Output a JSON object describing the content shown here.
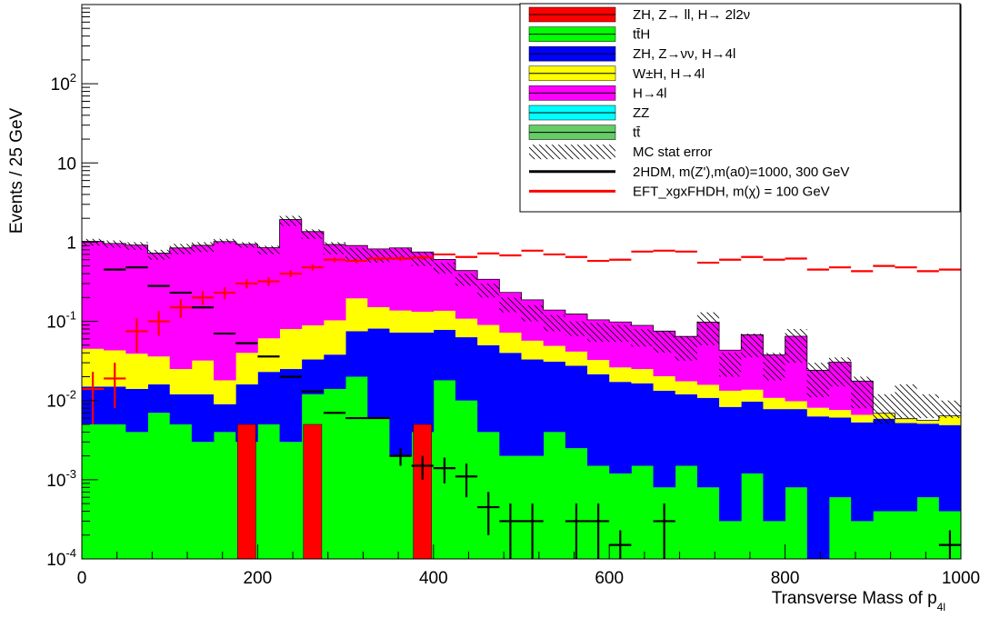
{
  "chart_data": {
    "type": "histogram",
    "xlabel": "Transverse Mass of p",
    "xlabel_sub": "4l",
    "ylabel": "Events / 25 GeV",
    "xlim": [
      0,
      1000
    ],
    "ylim": [
      0.0001,
      1000
    ],
    "y_scale": "log",
    "bin_width": 25,
    "x_ticks": [
      "0",
      "200",
      "400",
      "600",
      "800",
      "1000"
    ],
    "y_ticks": [
      {
        "value": 0.0001,
        "base": "10",
        "exp": "-4"
      },
      {
        "value": 0.001,
        "base": "10",
        "exp": "-3"
      },
      {
        "value": 0.01,
        "base": "10",
        "exp": "-2"
      },
      {
        "value": 0.1,
        "base": "10",
        "exp": "-1"
      },
      {
        "value": 1,
        "base": "1",
        "exp": ""
      },
      {
        "value": 10,
        "base": "10",
        "exp": ""
      },
      {
        "value": 100,
        "base": "10",
        "exp": "2"
      }
    ],
    "legend_position": "top-right",
    "legend": [
      {
        "label": "ZH, Z→ ll, H→ 2l2ν",
        "style": "fill",
        "color": "#ff0000"
      },
      {
        "label": "tt̄H",
        "style": "fill",
        "color": "#00ff00"
      },
      {
        "label": "ZH, Z→νν, H→4l",
        "style": "fill",
        "color": "#0000ff"
      },
      {
        "label": "W±H, H→4l",
        "style": "fill",
        "color": "#ffff00"
      },
      {
        "label": "H→4l",
        "style": "fill",
        "color": "#ff00ff"
      },
      {
        "label": "ZZ",
        "style": "fill",
        "color": "#00ffff"
      },
      {
        "label": "tt̄",
        "style": "fill",
        "color": "#66cc66"
      },
      {
        "label": "MC stat error",
        "style": "hatch",
        "color": "#000000"
      },
      {
        "label": "2HDM, m(Z'),m(a0)=1000, 300 GeV",
        "style": "line",
        "color": "#000000"
      },
      {
        "label": "EFT_xgxFHDH, m(χ) = 100 GeV",
        "style": "line",
        "color": "#ff0000"
      }
    ],
    "stack_order": [
      "ttH",
      "ZH_nunu",
      "WH",
      "H4l"
    ],
    "series": [
      {
        "name": "ZH, Z→ ll, H→ 2l2ν",
        "key": "ZH_ll",
        "color": "#ff0000",
        "values": [
          0,
          0,
          0,
          0,
          0,
          0,
          0,
          0.005,
          0,
          0,
          0.005,
          0,
          0,
          0,
          0,
          0.005,
          0,
          0,
          0,
          0,
          0,
          0,
          0,
          0,
          0,
          0,
          0,
          0,
          0,
          0,
          0,
          0,
          0,
          0,
          0,
          0,
          0,
          0,
          0,
          0
        ]
      },
      {
        "name": "tt̄H",
        "key": "ttH",
        "color": "#00ff00",
        "values": [
          0.005,
          0.005,
          0.004,
          0.007,
          0.005,
          0.003,
          0.004,
          0.003,
          0.005,
          0.003,
          0.012,
          0.014,
          0.02,
          0.006,
          0.002,
          0.004,
          0.018,
          0.01,
          0.004,
          0.002,
          0.002,
          0.004,
          0.0025,
          0.0015,
          0.0012,
          0.0015,
          0.0008,
          0.0015,
          0.0008,
          0.0003,
          0.0012,
          0.0003,
          0.0008,
          0.0001,
          0.0006,
          0.0003,
          0.0004,
          0.0004,
          0.0006,
          0.0004
        ]
      },
      {
        "name": "ZH, Z→νν, H→4l",
        "key": "ZH_nunu",
        "color": "#0000ff",
        "values": [
          0.01,
          0.01,
          0.01,
          0.009,
          0.007,
          0.009,
          0.005,
          0.013,
          0.018,
          0.022,
          0.021,
          0.024,
          0.055,
          0.075,
          0.07,
          0.068,
          0.06,
          0.053,
          0.046,
          0.038,
          0.031,
          0.027,
          0.025,
          0.02,
          0.016,
          0.015,
          0.0125,
          0.0105,
          0.01,
          0.008,
          0.0085,
          0.0075,
          0.007,
          0.0062,
          0.0055,
          0.005,
          0.0055,
          0.0048,
          0.0045,
          0.0045
        ]
      },
      {
        "name": "W±H, H→4l",
        "key": "WH",
        "color": "#ffff00",
        "values": [
          0.03,
          0.028,
          0.025,
          0.02,
          0.013,
          0.02,
          0.009,
          0.024,
          0.038,
          0.055,
          0.056,
          0.065,
          0.12,
          0.07,
          0.065,
          0.06,
          0.058,
          0.045,
          0.04,
          0.032,
          0.024,
          0.018,
          0.014,
          0.011,
          0.009,
          0.0085,
          0.007,
          0.0055,
          0.005,
          0.005,
          0.004,
          0.003,
          0.002,
          0.0018,
          0.0015,
          0.0013,
          0.001,
          0.0007,
          0.0005,
          0.0015
        ]
      },
      {
        "name": "H→4l",
        "key": "H4l",
        "color": "#ff00ff",
        "values": [
          0.98,
          0.92,
          0.88,
          0.69,
          0.82,
          0.88,
          1.0,
          0.9,
          0.79,
          1.85,
          1.27,
          0.83,
          0.71,
          0.67,
          0.71,
          0.62,
          0.47,
          0.33,
          0.25,
          0.16,
          0.13,
          0.09,
          0.082,
          0.072,
          0.072,
          0.064,
          0.055,
          0.047,
          0.082,
          0.03,
          0.054,
          0.027,
          0.055,
          0.016,
          0.023,
          0.011,
          0.0,
          0.0,
          0.0,
          0.0
        ]
      },
      {
        "name": "2HDM, m(Z'),m(a0)=1000, 300 GeV",
        "key": "sig2hdm",
        "color": "#000000",
        "type": "errorbars",
        "points": [
          [
            37.5,
            0.45,
            0
          ],
          [
            62.5,
            0.48,
            0
          ],
          [
            87.5,
            0.28,
            0
          ],
          [
            112.5,
            0.23,
            0
          ],
          [
            137.5,
            0.15,
            0
          ],
          [
            162.5,
            0.07,
            0
          ],
          [
            187.5,
            0.053,
            0
          ],
          [
            212.5,
            0.036,
            0
          ],
          [
            237.5,
            0.02,
            0
          ],
          [
            262.5,
            0.013,
            0
          ],
          [
            287.5,
            0.007,
            0
          ],
          [
            312.5,
            0.006,
            0
          ],
          [
            337.5,
            0.006,
            0
          ],
          [
            362.5,
            0.002,
            0.0005
          ],
          [
            387.5,
            0.0015,
            0.0005
          ],
          [
            412.5,
            0.0014,
            0.0005
          ],
          [
            437.5,
            0.0011,
            0.0005
          ],
          [
            462.5,
            0.00045,
            0.00025
          ],
          [
            487.5,
            0.0003,
            0.0002
          ],
          [
            512.5,
            0.0003,
            0.0002
          ],
          [
            562.5,
            0.0003,
            0.0002
          ],
          [
            587.5,
            0.0003,
            0.0002
          ],
          [
            612.5,
            0.00015,
            8e-05
          ],
          [
            662.5,
            0.0003,
            0.0002
          ],
          [
            987.5,
            0.00015,
            8e-05
          ]
        ]
      },
      {
        "name": "EFT_xgxFHDH, m(χ) = 100 GeV",
        "key": "sigEFT",
        "color": "#ff0000",
        "type": "errorbars",
        "points": [
          [
            12.5,
            0.014,
            0.009
          ],
          [
            37.5,
            0.019,
            0.011
          ],
          [
            62.5,
            0.075,
            0.035
          ],
          [
            87.5,
            0.1,
            0.035
          ],
          [
            112.5,
            0.15,
            0.04
          ],
          [
            137.5,
            0.2,
            0.04
          ],
          [
            162.5,
            0.23,
            0.04
          ],
          [
            187.5,
            0.3,
            0.04
          ],
          [
            212.5,
            0.32,
            0.04
          ],
          [
            237.5,
            0.4,
            0.04
          ],
          [
            262.5,
            0.48,
            0.04
          ],
          [
            287.5,
            0.6,
            0.04
          ],
          [
            312.5,
            0.58,
            0.04
          ],
          [
            337.5,
            0.62,
            0.04
          ],
          [
            362.5,
            0.62,
            0.04
          ],
          [
            387.5,
            0.64,
            0.04
          ],
          [
            412.5,
            0.7,
            0
          ],
          [
            437.5,
            0.65,
            0
          ],
          [
            462.5,
            0.72,
            0
          ],
          [
            487.5,
            0.68,
            0
          ],
          [
            512.5,
            0.78,
            0
          ],
          [
            537.5,
            0.7,
            0
          ],
          [
            562.5,
            0.65,
            0
          ],
          [
            587.5,
            0.58,
            0
          ],
          [
            612.5,
            0.6,
            0
          ],
          [
            637.5,
            0.76,
            0
          ],
          [
            662.5,
            0.78,
            0
          ],
          [
            687.5,
            0.76,
            0
          ],
          [
            712.5,
            0.55,
            0
          ],
          [
            737.5,
            0.6,
            0
          ],
          [
            762.5,
            0.65,
            0
          ],
          [
            787.5,
            0.6,
            0
          ],
          [
            812.5,
            0.62,
            0
          ],
          [
            837.5,
            0.45,
            0
          ],
          [
            862.5,
            0.48,
            0
          ],
          [
            887.5,
            0.43,
            0
          ],
          [
            912.5,
            0.5,
            0
          ],
          [
            937.5,
            0.48,
            0
          ],
          [
            962.5,
            0.43,
            0
          ],
          [
            987.5,
            0.45,
            0
          ]
        ]
      }
    ],
    "stat_error_band": {
      "name": "MC stat error",
      "upper": [
        1.1,
        1.05,
        1.0,
        0.8,
        0.95,
        1.0,
        1.1,
        1.0,
        0.9,
        2.15,
        1.45,
        1.0,
        0.85,
        0.8,
        0.85,
        0.75,
        0.55,
        0.4,
        0.3,
        0.2,
        0.16,
        0.12,
        0.1,
        0.095,
        0.09,
        0.08,
        0.075,
        0.065,
        0.13,
        0.04,
        0.07,
        0.04,
        0.08,
        0.03,
        0.035,
        0.02,
        0.012,
        0.016,
        0.012,
        0.01
      ],
      "lower": [
        0.9,
        0.85,
        0.8,
        0.6,
        0.7,
        0.75,
        0.95,
        0.85,
        0.7,
        1.6,
        1.1,
        0.7,
        0.6,
        0.55,
        0.6,
        0.5,
        0.4,
        0.28,
        0.2,
        0.13,
        0.1,
        0.075,
        0.065,
        0.055,
        0.055,
        0.048,
        0.04,
        0.032,
        0.05,
        0.02,
        0.035,
        0.018,
        0.03,
        0.011,
        0.015,
        0.008,
        0.005,
        0.006,
        0.006,
        0.006
      ]
    }
  }
}
